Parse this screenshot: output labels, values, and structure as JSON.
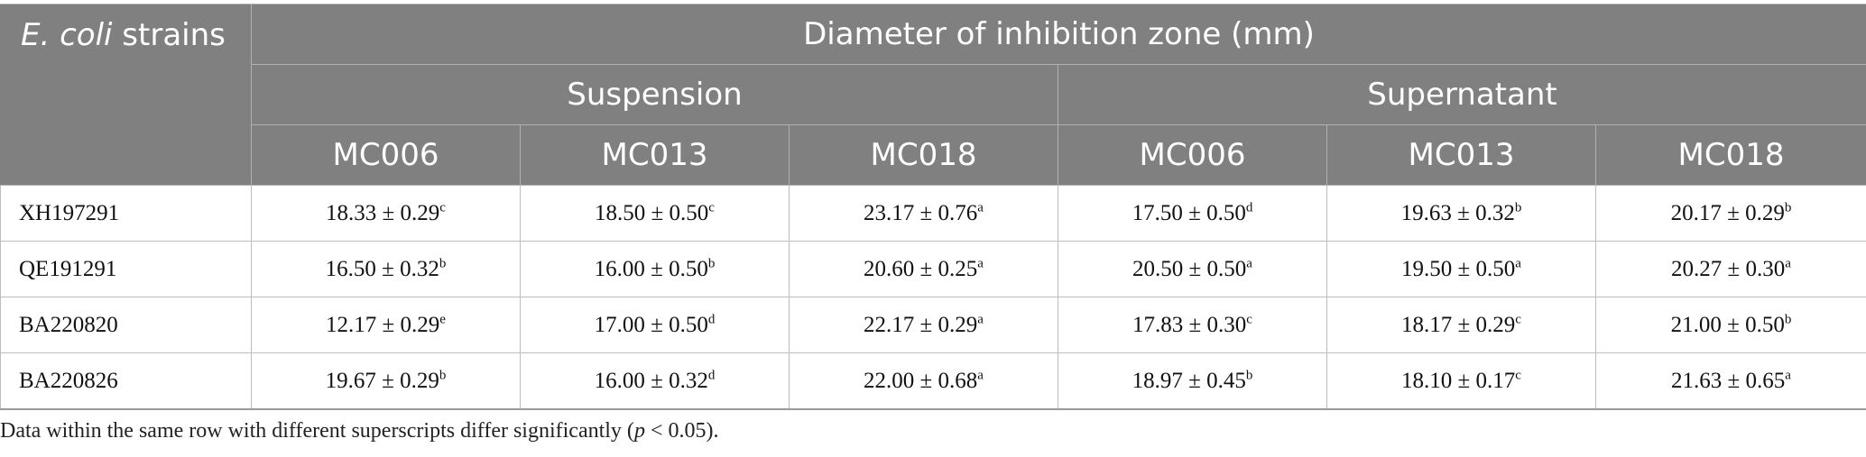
{
  "header": {
    "corner_italic": "E. coli",
    "corner_rest": " strains",
    "group_title": "Diameter of inhibition zone (mm)",
    "subgroups": [
      "Suspension",
      "Supernatant"
    ],
    "columns": [
      "MC006",
      "MC013",
      "MC018",
      "MC006",
      "MC013",
      "MC018"
    ]
  },
  "rows": [
    {
      "strain": "XH197291",
      "cells": [
        {
          "v": "18.33 ± 0.29",
          "s": "c"
        },
        {
          "v": "18.50 ± 0.50",
          "s": "c"
        },
        {
          "v": "23.17 ± 0.76",
          "s": "a"
        },
        {
          "v": "17.50 ± 0.50",
          "s": "d"
        },
        {
          "v": "19.63 ± 0.32",
          "s": "b"
        },
        {
          "v": "20.17 ± 0.29",
          "s": "b"
        }
      ]
    },
    {
      "strain": "QE191291",
      "cells": [
        {
          "v": "16.50 ± 0.32",
          "s": "b"
        },
        {
          "v": "16.00 ± 0.50",
          "s": "b"
        },
        {
          "v": "20.60 ± 0.25",
          "s": "a"
        },
        {
          "v": "20.50 ± 0.50",
          "s": "a"
        },
        {
          "v": "19.50 ± 0.50",
          "s": "a"
        },
        {
          "v": "20.27 ± 0.30",
          "s": "a"
        }
      ]
    },
    {
      "strain": "BA220820",
      "cells": [
        {
          "v": "12.17 ± 0.29",
          "s": "e"
        },
        {
          "v": "17.00 ± 0.50",
          "s": "d"
        },
        {
          "v": "22.17 ± 0.29",
          "s": "a"
        },
        {
          "v": "17.83 ± 0.30",
          "s": "c"
        },
        {
          "v": "18.17 ± 0.29",
          "s": "c"
        },
        {
          "v": "21.00 ± 0.50",
          "s": "b"
        }
      ]
    },
    {
      "strain": "BA220826",
      "cells": [
        {
          "v": "19.67 ± 0.29",
          "s": "b"
        },
        {
          "v": "16.00 ± 0.32",
          "s": "d"
        },
        {
          "v": "22.00 ± 0.68",
          "s": "a"
        },
        {
          "v": "18.97 ± 0.45",
          "s": "b"
        },
        {
          "v": "18.10 ± 0.17",
          "s": "c"
        },
        {
          "v": "21.63 ± 0.65",
          "s": "a"
        }
      ]
    }
  ],
  "footnote": {
    "before": "Data within the same row with different superscripts differ significantly (",
    "italic": "p",
    "after": " < 0.05)."
  }
}
